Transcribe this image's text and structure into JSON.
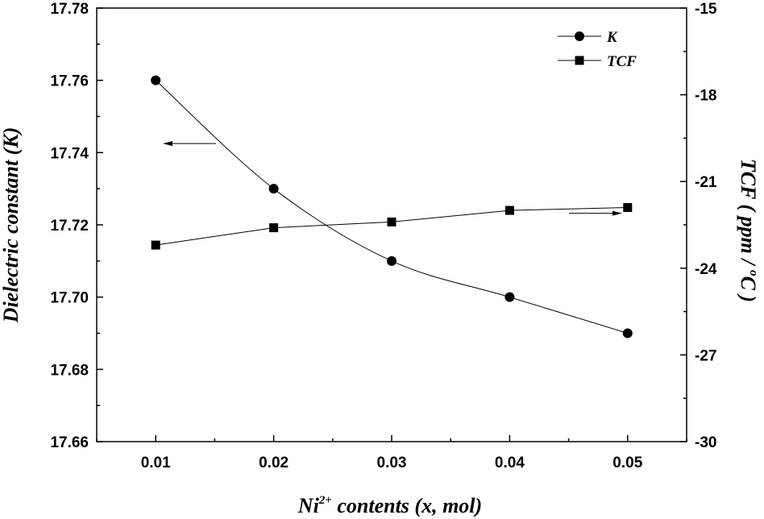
{
  "chart_data": {
    "type": "line",
    "x": [
      0.01,
      0.02,
      0.03,
      0.04,
      0.05
    ],
    "x_tick_labels": [
      "0.01",
      "0.02",
      "0.03",
      "0.04",
      "0.05"
    ],
    "xlim": [
      0.005,
      0.055
    ],
    "xlabel": {
      "prefix": "Ni",
      "superscript": "2+",
      "suffix": " contents (x, mol)"
    },
    "ylabel_left": "Dielectric constant (K)",
    "ylabel_right": {
      "prefix": "TCF ( ppm / ",
      "superscript": "o",
      "suffix": "C )"
    },
    "ylim_left": [
      17.66,
      17.78
    ],
    "ylim_right": [
      -30,
      -15
    ],
    "y_left_ticks": [
      "17.66",
      "17.68",
      "17.70",
      "17.72",
      "17.74",
      "17.76",
      "17.78"
    ],
    "y_right_ticks": [
      "-30",
      "-27",
      "-24",
      "-21",
      "-18",
      "-15"
    ],
    "grid": false,
    "legend_position": "top-right",
    "series": [
      {
        "name": "K",
        "axis": "left",
        "marker": "circle",
        "values": [
          17.76,
          17.73,
          17.71,
          17.7,
          17.69
        ]
      },
      {
        "name": "TCF",
        "axis": "right",
        "marker": "square",
        "values": [
          -23.2,
          -22.6,
          -22.4,
          -22.0,
          -21.9
        ]
      }
    ],
    "annotations": [
      {
        "type": "arrow",
        "direction": "left",
        "label": ""
      },
      {
        "type": "arrow",
        "direction": "right",
        "label": ""
      }
    ],
    "colors": {
      "line": "#000000",
      "marker": "#000000"
    }
  }
}
